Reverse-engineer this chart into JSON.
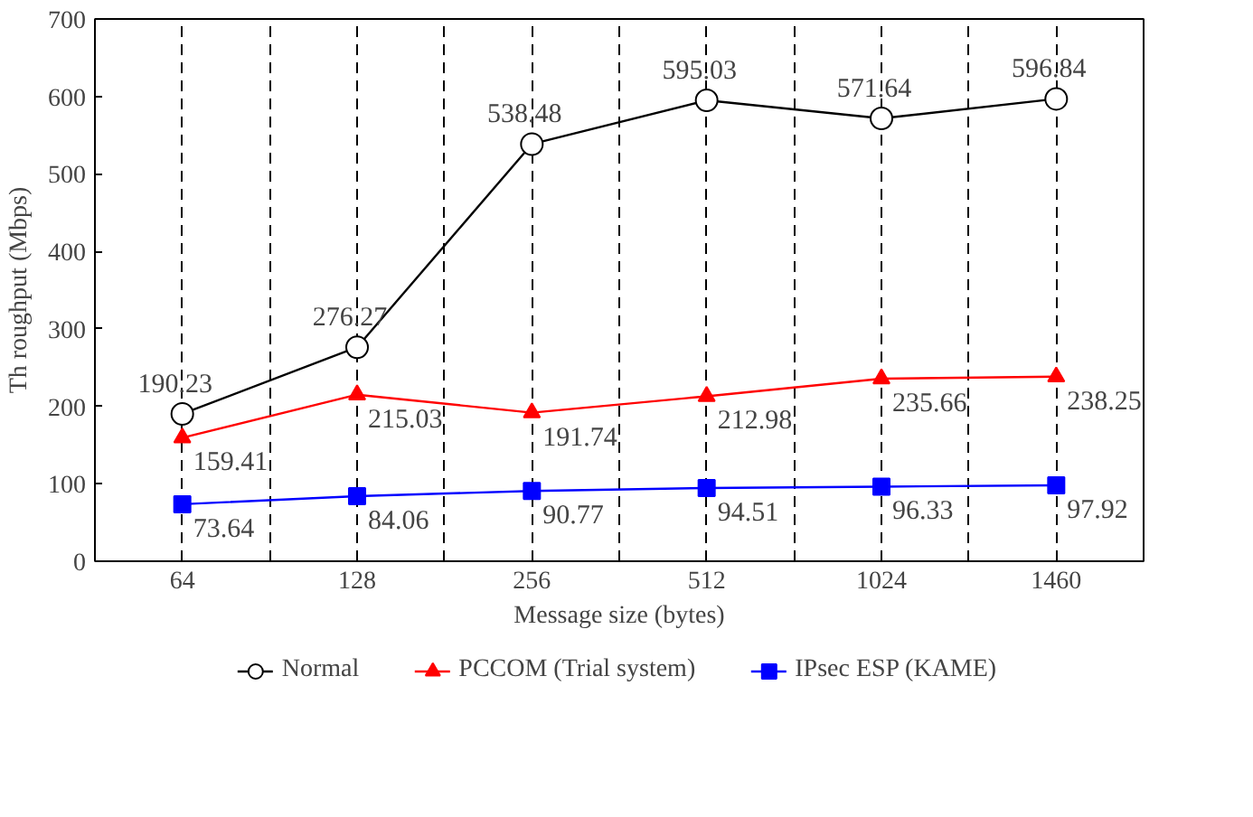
{
  "chart_data": {
    "type": "line",
    "xlabel": "Message size (bytes)",
    "ylabel": "Th roughput (Mbps)",
    "categories": [
      "64",
      "128",
      "256",
      "512",
      "1024",
      "1460"
    ],
    "ylim": [
      0,
      700
    ],
    "yticks": [
      0,
      100,
      200,
      300,
      400,
      500,
      600,
      700
    ],
    "grid": "x",
    "legend": "bottom",
    "data_labels": true,
    "series": [
      {
        "name": "Normal",
        "color": "#000000",
        "marker": "circle",
        "values": [
          190.23,
          276.27,
          538.48,
          595.03,
          571.64,
          596.84
        ]
      },
      {
        "name": "PCCOM (Trial system)",
        "color": "#ff0000",
        "marker": "triangle",
        "values": [
          159.41,
          215.03,
          191.74,
          212.98,
          235.66,
          238.25
        ]
      },
      {
        "name": "IPsec ESP (KAME)",
        "color": "#0000ff",
        "marker": "square",
        "values": [
          73.64,
          84.06,
          90.77,
          94.51,
          96.33,
          97.92
        ]
      }
    ]
  }
}
